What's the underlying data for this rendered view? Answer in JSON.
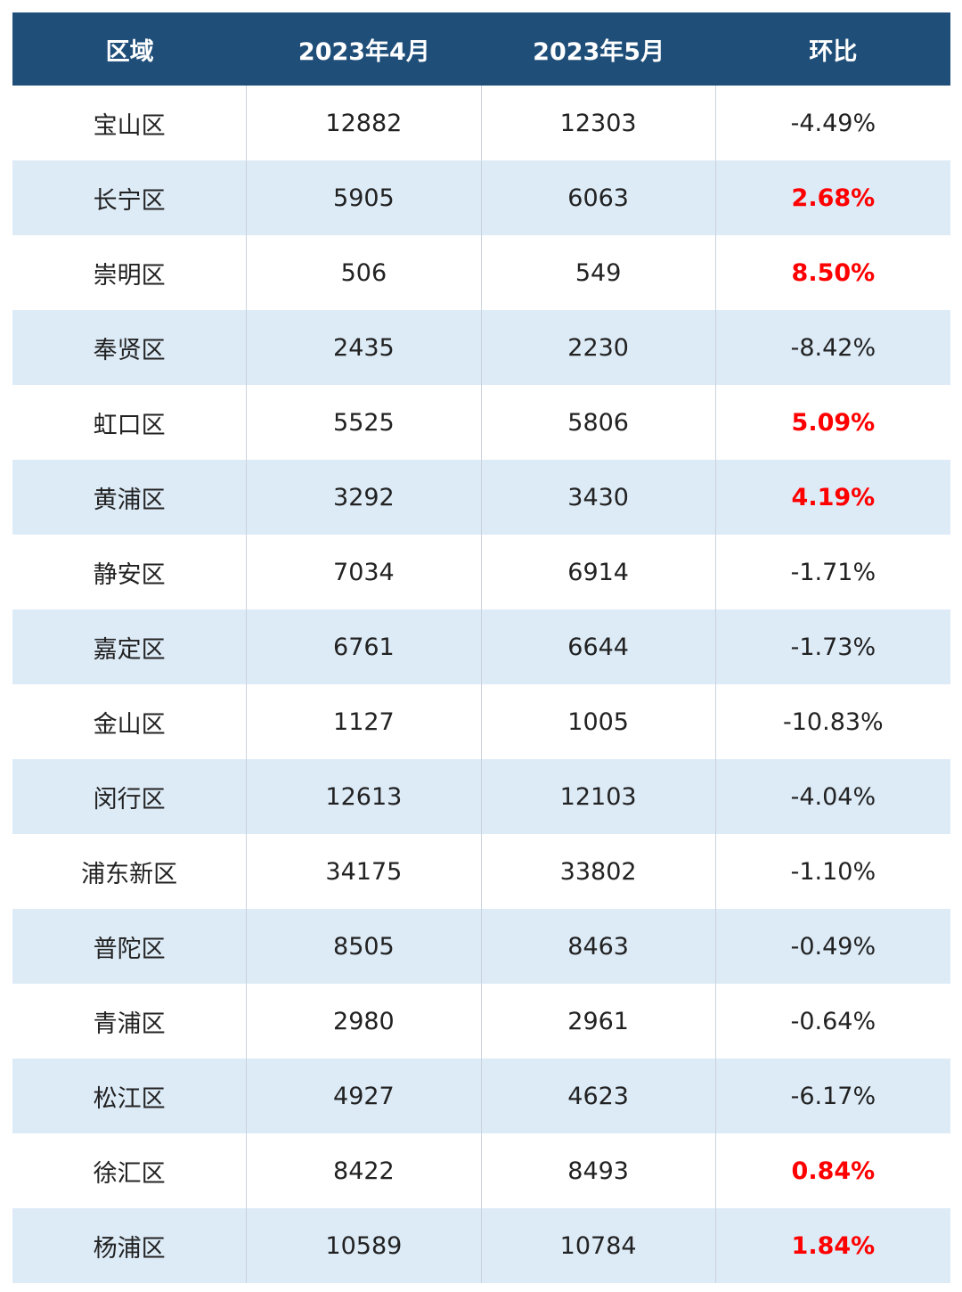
{
  "colors": {
    "header_bg": "#1f4e79",
    "band_bg": "#ddebf7",
    "positive": "#ff0000"
  },
  "chart_data": {
    "type": "table",
    "columns": [
      "区域",
      "2023年4月",
      "2023年5月",
      "环比"
    ],
    "rows": [
      {
        "district": "宝山区",
        "apr": "12882",
        "may": "12303",
        "mom": "-4.49%",
        "up": false
      },
      {
        "district": "长宁区",
        "apr": "5905",
        "may": "6063",
        "mom": "2.68%",
        "up": true
      },
      {
        "district": "崇明区",
        "apr": "506",
        "may": "549",
        "mom": "8.50%",
        "up": true
      },
      {
        "district": "奉贤区",
        "apr": "2435",
        "may": "2230",
        "mom": "-8.42%",
        "up": false
      },
      {
        "district": "虹口区",
        "apr": "5525",
        "may": "5806",
        "mom": "5.09%",
        "up": true
      },
      {
        "district": "黄浦区",
        "apr": "3292",
        "may": "3430",
        "mom": "4.19%",
        "up": true
      },
      {
        "district": "静安区",
        "apr": "7034",
        "may": "6914",
        "mom": "-1.71%",
        "up": false
      },
      {
        "district": "嘉定区",
        "apr": "6761",
        "may": "6644",
        "mom": "-1.73%",
        "up": false
      },
      {
        "district": "金山区",
        "apr": "1127",
        "may": "1005",
        "mom": "-10.83%",
        "up": false
      },
      {
        "district": "闵行区",
        "apr": "12613",
        "may": "12103",
        "mom": "-4.04%",
        "up": false
      },
      {
        "district": "浦东新区",
        "apr": "34175",
        "may": "33802",
        "mom": "-1.10%",
        "up": false
      },
      {
        "district": "普陀区",
        "apr": "8505",
        "may": "8463",
        "mom": "-0.49%",
        "up": false
      },
      {
        "district": "青浦区",
        "apr": "2980",
        "may": "2961",
        "mom": "-0.64%",
        "up": false
      },
      {
        "district": "松江区",
        "apr": "4927",
        "may": "4623",
        "mom": "-6.17%",
        "up": false
      },
      {
        "district": "徐汇区",
        "apr": "8422",
        "may": "8493",
        "mom": "0.84%",
        "up": true
      },
      {
        "district": "杨浦区",
        "apr": "10589",
        "may": "10784",
        "mom": "1.84%",
        "up": true
      }
    ]
  }
}
